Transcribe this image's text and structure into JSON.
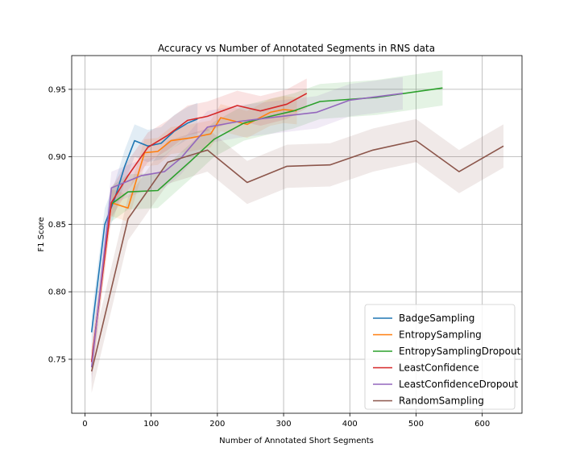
{
  "chart_data": {
    "type": "line",
    "title": "Accuracy vs Number of Annotated Segments in RNS data",
    "xlabel": "Number of Annotated Short Segments",
    "ylabel": "F1 Score",
    "xlim": [
      -20,
      660
    ],
    "ylim": [
      0.71,
      0.975
    ],
    "xticks": [
      0,
      100,
      200,
      300,
      400,
      500,
      600
    ],
    "yticks": [
      0.75,
      0.8,
      0.85,
      0.9,
      0.95
    ],
    "xtick_labels": [
      "0",
      "100",
      "200",
      "300",
      "400",
      "500",
      "600"
    ],
    "ytick_labels": [
      "0.75",
      "0.80",
      "0.85",
      "0.90",
      "0.95"
    ],
    "grid": true,
    "legend_position": "lower-right",
    "series": [
      {
        "name": "BadgeSampling",
        "color": "#1f77b4",
        "x": [
          10,
          30,
          45,
          60,
          75,
          95,
          115,
          135,
          155,
          170
        ],
        "y": [
          0.77,
          0.85,
          0.869,
          0.893,
          0.912,
          0.908,
          0.91,
          0.919,
          0.925,
          0.928
        ],
        "band": 0.012
      },
      {
        "name": "EntropySampling",
        "color": "#ff7f0e",
        "x": [
          10,
          40,
          65,
          90,
          110,
          130,
          160,
          190,
          205,
          245,
          280,
          300,
          320
        ],
        "y": [
          0.748,
          0.866,
          0.862,
          0.903,
          0.904,
          0.912,
          0.914,
          0.917,
          0.929,
          0.924,
          0.933,
          0.935,
          0.934
        ],
        "band": 0.01
      },
      {
        "name": "EntropySamplingDropout",
        "color": "#2ca02c",
        "x": [
          40,
          65,
          110,
          160,
          195,
          240,
          280,
          315,
          355,
          440,
          540
        ],
        "y": [
          0.865,
          0.874,
          0.875,
          0.897,
          0.913,
          0.925,
          0.93,
          0.934,
          0.941,
          0.944,
          0.951
        ],
        "band": 0.013
      },
      {
        "name": "LeastConfidence",
        "color": "#d62728",
        "x": [
          10,
          40,
          65,
          95,
          125,
          155,
          185,
          230,
          265,
          305,
          335
        ],
        "y": [
          0.748,
          0.866,
          0.886,
          0.907,
          0.916,
          0.927,
          0.93,
          0.938,
          0.934,
          0.939,
          0.947
        ],
        "band": 0.011
      },
      {
        "name": "LeastConfidenceDropout",
        "color": "#9467bd",
        "x": [
          10,
          40,
          85,
          120,
          145,
          185,
          230,
          280,
          350,
          400,
          480
        ],
        "y": [
          0.744,
          0.877,
          0.886,
          0.889,
          0.899,
          0.922,
          0.926,
          0.929,
          0.933,
          0.942,
          0.947
        ],
        "band": 0.012
      },
      {
        "name": "RandomSampling",
        "color": "#8c564b",
        "x": [
          10,
          65,
          125,
          185,
          245,
          305,
          370,
          435,
          500,
          565,
          632
        ],
        "y": [
          0.741,
          0.854,
          0.896,
          0.905,
          0.881,
          0.893,
          0.894,
          0.905,
          0.912,
          0.889,
          0.908
        ],
        "band": 0.016
      }
    ]
  }
}
